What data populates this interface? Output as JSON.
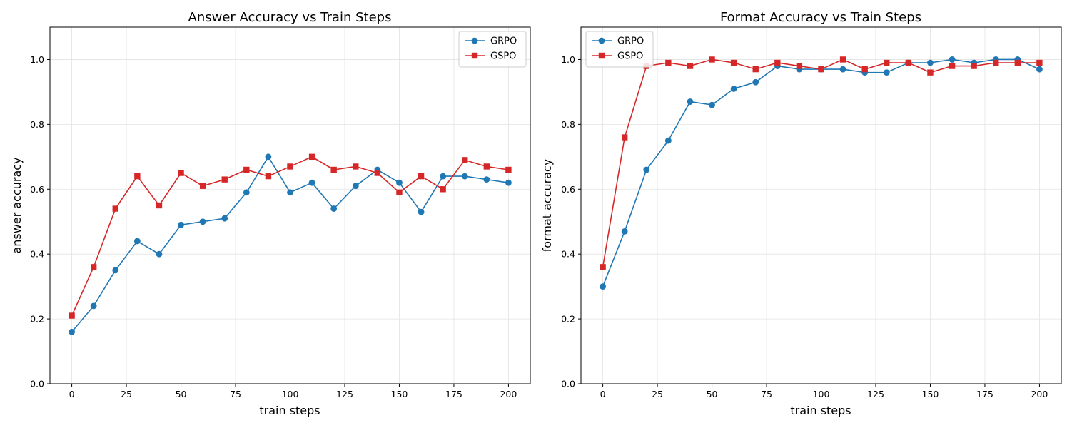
{
  "chart_data": [
    {
      "type": "line",
      "title": "Answer Accuracy vs Train Steps",
      "xlabel": "train steps",
      "ylabel": "answer accuracy",
      "x": [
        0,
        10,
        20,
        30,
        40,
        50,
        60,
        70,
        80,
        90,
        100,
        110,
        120,
        130,
        140,
        150,
        160,
        170,
        180,
        190,
        200
      ],
      "xlim": [
        -10,
        210
      ],
      "ylim": [
        0,
        1.1
      ],
      "xticks": [
        0,
        25,
        50,
        75,
        100,
        125,
        150,
        175,
        200
      ],
      "yticks": [
        0.0,
        0.2,
        0.4,
        0.6,
        0.8,
        1.0
      ],
      "grid": true,
      "legend_position": "top-right",
      "series": [
        {
          "name": "GRPO",
          "color": "#1f77b4",
          "marker": "circle",
          "values": [
            0.16,
            0.24,
            0.35,
            0.44,
            0.4,
            0.49,
            0.5,
            0.51,
            0.59,
            0.7,
            0.59,
            0.62,
            0.54,
            0.61,
            0.66,
            0.62,
            0.53,
            0.64,
            0.64,
            0.63,
            0.62
          ]
        },
        {
          "name": "GSPO",
          "color": "#d62728",
          "marker": "square",
          "values": [
            0.21,
            0.36,
            0.54,
            0.64,
            0.55,
            0.65,
            0.61,
            0.63,
            0.66,
            0.64,
            0.67,
            0.7,
            0.66,
            0.67,
            0.65,
            0.59,
            0.64,
            0.6,
            0.69,
            0.67,
            0.66
          ]
        }
      ]
    },
    {
      "type": "line",
      "title": "Format Accuracy vs Train Steps",
      "xlabel": "train steps",
      "ylabel": "format accuracy",
      "x": [
        0,
        10,
        20,
        30,
        40,
        50,
        60,
        70,
        80,
        90,
        100,
        110,
        120,
        130,
        140,
        150,
        160,
        170,
        180,
        190,
        200
      ],
      "xlim": [
        -10,
        210
      ],
      "ylim": [
        0,
        1.1
      ],
      "xticks": [
        0,
        25,
        50,
        75,
        100,
        125,
        150,
        175,
        200
      ],
      "yticks": [
        0.0,
        0.2,
        0.4,
        0.6,
        0.8,
        1.0
      ],
      "grid": true,
      "legend_position": "top-left",
      "series": [
        {
          "name": "GRPO",
          "color": "#1f77b4",
          "marker": "circle",
          "values": [
            0.3,
            0.47,
            0.66,
            0.75,
            0.87,
            0.86,
            0.91,
            0.93,
            0.98,
            0.97,
            0.97,
            0.97,
            0.96,
            0.96,
            0.99,
            0.99,
            1.0,
            0.99,
            1.0,
            1.0,
            0.97
          ]
        },
        {
          "name": "GSPO",
          "color": "#d62728",
          "marker": "square",
          "values": [
            0.36,
            0.76,
            0.98,
            0.99,
            0.98,
            1.0,
            0.99,
            0.97,
            0.99,
            0.98,
            0.97,
            1.0,
            0.97,
            0.99,
            0.99,
            0.96,
            0.98,
            0.98,
            0.99,
            0.99,
            0.99
          ]
        }
      ]
    }
  ]
}
